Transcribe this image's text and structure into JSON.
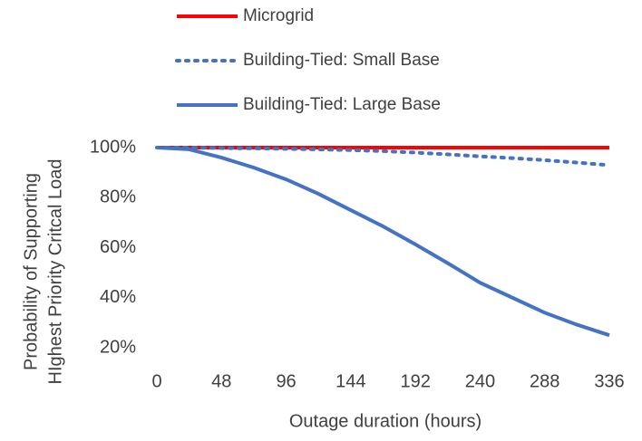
{
  "chart_data": {
    "type": "line",
    "y_label_lines": [
      "Probability of Supporting",
      "HIghest Priority Critcal Load"
    ],
    "x_label": "Outage duration (hours)",
    "x": [
      0,
      24,
      48,
      72,
      96,
      120,
      144,
      168,
      192,
      216,
      240,
      264,
      288,
      312,
      336
    ],
    "series": [
      {
        "name": "Microgrid",
        "color": "#ff0000",
        "dash": "solid",
        "values": [
          100,
          100,
          100,
          100,
          100,
          100,
          100,
          100,
          100,
          100,
          100,
          100,
          100,
          100,
          100
        ]
      },
      {
        "name": "Building-Tied: Small Base",
        "color": "#4472c4",
        "dash": "dotted",
        "values": [
          100,
          100,
          99.8,
          99.7,
          99.5,
          99.3,
          99,
          98.6,
          98,
          97.3,
          96.5,
          95.8,
          95,
          94,
          93
        ]
      },
      {
        "name": "Building-Tied: Large Base",
        "color": "#4472c4",
        "dash": "solid",
        "values": [
          100,
          99.3,
          96,
          92,
          87.3,
          81.5,
          75,
          68.5,
          61.3,
          53.8,
          46,
          40,
          34,
          29.2,
          25
        ]
      }
    ],
    "xlim": [
      0,
      336
    ],
    "xticks": [
      0,
      48,
      96,
      144,
      192,
      240,
      288,
      336
    ],
    "ylim": [
      20,
      100
    ],
    "yticks": [
      {
        "value": 20,
        "label": "20%"
      },
      {
        "value": 40,
        "label": "40%"
      },
      {
        "value": 60,
        "label": "60%"
      },
      {
        "value": 80,
        "label": "80%"
      },
      {
        "value": 100,
        "label": "100%"
      }
    ],
    "grid": false,
    "legend": "top"
  }
}
